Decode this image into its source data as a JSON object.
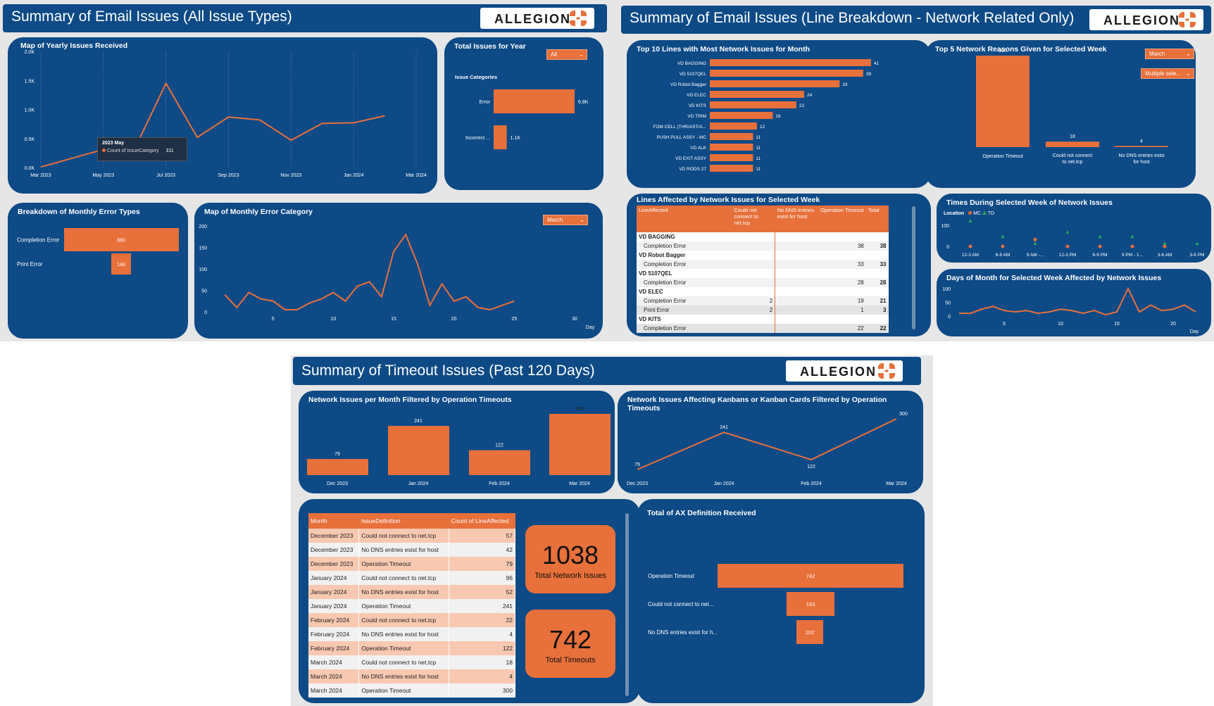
{
  "colors": {
    "navy": "#0d4a86",
    "orange": "#e8703a",
    "white": "#ffffff"
  },
  "brand": "ALLEGION",
  "dash1": {
    "title": "Summary of Email Issues (All Issue Types)",
    "yearly": {
      "title": "Map of Yearly Issues Received",
      "tooltip": {
        "title": "2023 May",
        "label": "Count of IssueCategory",
        "value": "311"
      }
    },
    "total": {
      "title": "Total Issues for Year",
      "dropdown": "All",
      "cat_title": "Issue Categories"
    },
    "monthly_types": {
      "title": "Breakdown of Monthly Error Types"
    },
    "monthly_cat": {
      "title": "Map of Monthly Error Category",
      "dropdown": "March",
      "xunit": "Day"
    }
  },
  "dash2": {
    "title": "Summary of Email Issues (Line Breakdown - Network Related Only)",
    "top10": {
      "title": "Top 10 Lines with Most Network Issues for Month"
    },
    "top5": {
      "title": "Top 5 Network Reasons Given for Selected Week",
      "dropdown1": "March",
      "dropdown2": "Multiple sele..."
    },
    "lines_table": {
      "title": "Lines Affected by Network Issues for Selected Week",
      "headers": [
        "LineAffected",
        "Could not connect to net.tcp",
        "No DNS entries exist for host",
        "Operation Timeout",
        "Total"
      ],
      "rows": [
        {
          "type": "group",
          "cells": [
            "VD BAGGING",
            "",
            "",
            "",
            ""
          ]
        },
        {
          "type": "row",
          "cells": [
            "Completion Error",
            "",
            "",
            "38",
            "38"
          ]
        },
        {
          "type": "group",
          "cells": [
            "VD Robot Bagger",
            "",
            "",
            "",
            ""
          ]
        },
        {
          "type": "row",
          "cells": [
            "Completion Error",
            "",
            "",
            "33",
            "33"
          ]
        },
        {
          "type": "group",
          "cells": [
            "VD 5107QEL",
            "",
            "",
            "",
            ""
          ]
        },
        {
          "type": "row",
          "cells": [
            "Completion Error",
            "",
            "",
            "28",
            "28"
          ]
        },
        {
          "type": "group",
          "cells": [
            "VD ELEC",
            "",
            "",
            "",
            ""
          ]
        },
        {
          "type": "row",
          "cells": [
            "Completion Error",
            "2",
            "",
            "19",
            "21"
          ]
        },
        {
          "type": "row",
          "cells": [
            "Print Error",
            "2",
            "",
            "1",
            "3"
          ]
        },
        {
          "type": "group",
          "cells": [
            "VD KITS",
            "",
            "",
            "",
            ""
          ]
        },
        {
          "type": "row",
          "cells": [
            "Completion Error",
            "",
            "",
            "22",
            "22"
          ]
        }
      ]
    },
    "times": {
      "title": "Times During Selected Week of Network Issues",
      "legend_title": "Location",
      "legend": [
        "MC",
        "TD"
      ]
    },
    "days": {
      "title": "Days of Month for Selected Week Affected by Network Issues",
      "xunit": "Day"
    }
  },
  "dash3": {
    "title": "Summary of Timeout Issues (Past 120 Days)",
    "per_month": {
      "title": "Network Issues per Month Filtered by Operation Timeouts"
    },
    "kanban": {
      "title": "Network Issues Affecting Kanbans or Kanban Cards Filtered by Operation Timeouts"
    },
    "table": {
      "headers": [
        "Month",
        "IssueDefinition",
        "Count of LineAffected"
      ],
      "rows": [
        [
          "December 2023",
          "Could not connect to net.tcp",
          "57"
        ],
        [
          "December 2023",
          "No DNS entries exist for host",
          "42"
        ],
        [
          "December 2023",
          "Operation Timeout",
          "79"
        ],
        [
          "January 2024",
          "Could not connect to net.tcp",
          "96"
        ],
        [
          "January 2024",
          "No DNS entries exist for host",
          "52"
        ],
        [
          "January 2024",
          "Operation Timeout",
          "241"
        ],
        [
          "February 2024",
          "Could not connect to net.tcp",
          "22"
        ],
        [
          "February 2024",
          "No DNS entries exist for host",
          "4"
        ],
        [
          "February 2024",
          "Operation Timeout",
          "122"
        ],
        [
          "March 2024",
          "Could not connect to net.tcp",
          "18"
        ],
        [
          "March 2024",
          "No DNS entries exist for host",
          "4"
        ],
        [
          "March 2024",
          "Operation Timeout",
          "300"
        ]
      ]
    },
    "kpi1": {
      "value": "1038",
      "label": "Total Network Issues"
    },
    "kpi2": {
      "value": "742",
      "label": "Total Timeouts"
    },
    "ax": {
      "title": "Total of AX Definition Received"
    }
  },
  "chart_data": [
    {
      "id": "yearly",
      "type": "line",
      "x": [
        "Mar 2023",
        "Apr 2023",
        "May 2023",
        "Jun 2023",
        "Jul 2023",
        "Aug 2023",
        "Sep 2023",
        "Oct 2023",
        "Nov 2023",
        "Dec 2023",
        "Jan 2024",
        "Feb 2024",
        "Mar 2024"
      ],
      "values": [
        10,
        160,
        311,
        320,
        1450,
        520,
        870,
        820,
        470,
        760,
        770,
        890,
        0
      ],
      "xticks": [
        "Mar 2023",
        "May 2023",
        "Jul 2023",
        "Sep 2023",
        "Nov 2023",
        "Jan 2024",
        "Mar 2024"
      ],
      "yticks": [
        "0.0K",
        "0.5K",
        "1.0K",
        "1.5K",
        "2.0K"
      ],
      "ylim": [
        0,
        2000
      ]
    },
    {
      "id": "issue_categories",
      "type": "bar",
      "categories": [
        "Error",
        "Incorrect ..."
      ],
      "values": [
        6800,
        1100
      ],
      "labels": [
        "6.8K",
        "1.1K"
      ]
    },
    {
      "id": "monthly_error_types",
      "type": "bar",
      "categories": [
        "Completion Error",
        "Print Error"
      ],
      "values": [
        860,
        148
      ],
      "labels": [
        "860",
        "148"
      ]
    },
    {
      "id": "monthly_error_category",
      "type": "line",
      "x": [
        1,
        2,
        3,
        4,
        5,
        6,
        7,
        8,
        9,
        10,
        11,
        12,
        13,
        14,
        15,
        16,
        17,
        18,
        19,
        20,
        21,
        22,
        23,
        24,
        25
      ],
      "values": [
        40,
        10,
        45,
        30,
        25,
        5,
        5,
        20,
        30,
        45,
        25,
        60,
        70,
        35,
        140,
        180,
        110,
        15,
        65,
        25,
        35,
        10,
        5,
        15,
        25
      ],
      "xticks": [
        "5",
        "10",
        "15",
        "20",
        "25",
        "30"
      ],
      "yticks": [
        "0",
        "50",
        "100",
        "150",
        "200"
      ],
      "ylim": [
        0,
        200
      ],
      "xlim": [
        0,
        30
      ],
      "xlabel": "Day"
    },
    {
      "id": "top10_lines",
      "type": "bar",
      "categories": [
        "VD BAGGING",
        "VD 5107QEL",
        "VD Robot Bagger",
        "VD ELEC",
        "VD KITS",
        "VD TRIM",
        "FOM CELL (THR/AST/A...",
        "PUSH PULL ASSY - MC",
        "VD ALK",
        "VD EXIT ASSY",
        "VD RODS 27"
      ],
      "values": [
        41,
        39,
        33,
        24,
        22,
        16,
        12,
        11,
        11,
        11,
        11
      ]
    },
    {
      "id": "top5_reasons",
      "type": "bar",
      "categories": [
        "Operation Timeout",
        "Could not connect to net.tcp",
        "No DNS entries exist for host"
      ],
      "values": [
        300,
        18,
        4
      ]
    },
    {
      "id": "times_week",
      "type": "scatter",
      "categories": [
        "12-3 AM",
        "6-9 AM",
        "9 AM -...",
        "12-3 PM",
        "6-9 PM",
        "9 PM - 1...",
        "3-6 AM",
        "3-6 PM"
      ],
      "series": [
        {
          "name": "MC",
          "values": [
            0,
            0,
            30,
            0,
            0,
            0,
            0,
            0
          ]
        },
        {
          "name": "TD",
          "values": [
            100,
            30,
            0,
            50,
            30,
            30,
            0,
            0
          ]
        }
      ],
      "yticks": [
        "0",
        "100"
      ]
    },
    {
      "id": "days_month",
      "type": "line",
      "x": [
        1,
        2,
        3,
        4,
        5,
        6,
        7,
        8,
        9,
        10,
        11,
        12,
        13,
        14,
        15,
        16,
        17,
        18,
        19,
        20,
        21,
        22
      ],
      "values": [
        10,
        10,
        25,
        35,
        20,
        15,
        20,
        10,
        15,
        25,
        20,
        10,
        20,
        5,
        15,
        100,
        15,
        40,
        20,
        25,
        40,
        15
      ],
      "xticks": [
        "5",
        "10",
        "15",
        "20"
      ],
      "yticks": [
        "0",
        "50",
        "100"
      ],
      "ylim": [
        0,
        100
      ],
      "xlabel": "Day"
    },
    {
      "id": "per_month",
      "type": "bar",
      "categories": [
        "Dec 2023",
        "Jan 2024",
        "Feb 2024",
        "Mar 2024"
      ],
      "values": [
        79,
        241,
        122,
        300
      ]
    },
    {
      "id": "kanban",
      "type": "line",
      "categories": [
        "Dec 2023",
        "Jan 2024",
        "Feb 2024",
        "Mar 2024"
      ],
      "values": [
        79,
        241,
        122,
        300
      ]
    },
    {
      "id": "ax_definition",
      "type": "bar",
      "categories": [
        "Operation Timeout",
        "Could not connect to net...",
        "No DNS entries exist for h..."
      ],
      "values": [
        742,
        193,
        102
      ]
    }
  ]
}
